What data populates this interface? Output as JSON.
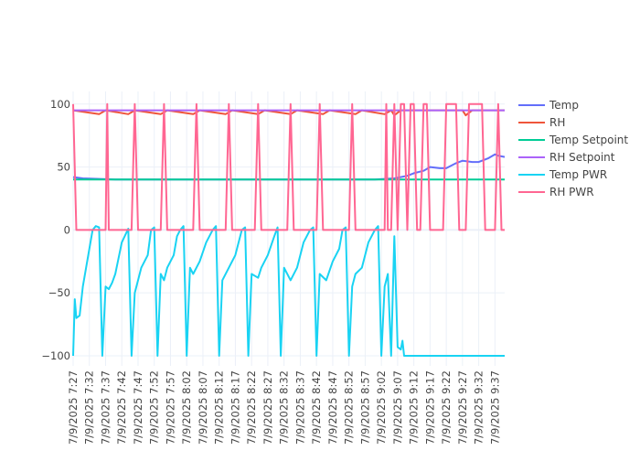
{
  "chart_data": {
    "type": "line",
    "title": "",
    "xlabel": "",
    "ylabel": "",
    "ylim": [
      -108,
      110
    ],
    "grid": true,
    "legend_position": "right",
    "x_ticks": [
      "7/9/2025 7:27",
      "7/9/2025 7:32",
      "7/9/2025 7:37",
      "7/9/2025 7:42",
      "7/9/2025 7:47",
      "7/9/2025 7:52",
      "7/9/2025 7:57",
      "7/9/2025 8:02",
      "7/9/2025 8:07",
      "7/9/2025 8:12",
      "7/9/2025 8:17",
      "7/9/2025 8:22",
      "7/9/2025 8:27",
      "7/9/2025 8:32",
      "7/9/2025 8:37",
      "7/9/2025 8:42",
      "7/9/2025 8:47",
      "7/9/2025 8:52",
      "7/9/2025 8:57",
      "7/9/2025 9:02",
      "7/9/2025 9:07",
      "7/9/2025 9:12",
      "7/9/2025 9:17",
      "7/9/2025 9:22",
      "7/9/2025 9:27",
      "7/9/2025 9:32",
      "7/9/2025 9:37"
    ],
    "x_range": [
      "7/9/2025 7:27",
      "7/9/2025 9:40"
    ],
    "y_ticks": [
      100,
      50,
      0,
      -50,
      -100
    ],
    "series": [
      {
        "name": "Temp",
        "color": "#636efa",
        "points": [
          [
            "7:27",
            42
          ],
          [
            "7:30",
            41
          ],
          [
            "7:40",
            40
          ],
          [
            "8:00",
            40
          ],
          [
            "8:30",
            40
          ],
          [
            "9:00",
            40
          ],
          [
            "9:06",
            41
          ],
          [
            "9:10",
            43
          ],
          [
            "9:12",
            45
          ],
          [
            "9:15",
            47
          ],
          [
            "9:17",
            50
          ],
          [
            "9:20",
            49
          ],
          [
            "9:22",
            49
          ],
          [
            "9:25",
            53
          ],
          [
            "9:27",
            55
          ],
          [
            "9:30",
            54
          ],
          [
            "9:32",
            54
          ],
          [
            "9:35",
            57
          ],
          [
            "9:37",
            60
          ],
          [
            "9:38",
            59
          ],
          [
            "9:40",
            58
          ]
        ]
      },
      {
        "name": "RH",
        "color": "#ef553b",
        "points": [
          [
            "7:27",
            95
          ],
          [
            "7:35",
            92
          ],
          [
            "7:37",
            95
          ],
          [
            "7:44",
            92
          ],
          [
            "7:46",
            95
          ],
          [
            "7:54",
            92
          ],
          [
            "7:56",
            95
          ],
          [
            "8:04",
            92
          ],
          [
            "8:06",
            95
          ],
          [
            "8:14",
            92
          ],
          [
            "8:16",
            95
          ],
          [
            "8:24",
            92
          ],
          [
            "8:26",
            95
          ],
          [
            "8:34",
            92
          ],
          [
            "8:36",
            95
          ],
          [
            "8:44",
            92
          ],
          [
            "8:46",
            95
          ],
          [
            "8:54",
            92
          ],
          [
            "8:56",
            95
          ],
          [
            "9:03",
            92
          ],
          [
            "9:05",
            95
          ],
          [
            "9:06",
            91
          ],
          [
            "9:08",
            95
          ],
          [
            "9:27",
            95
          ],
          [
            "9:28",
            91
          ],
          [
            "9:30",
            95
          ],
          [
            "9:40",
            95
          ]
        ]
      },
      {
        "name": "Temp Setpoint",
        "color": "#00cc96",
        "points": [
          [
            "7:27",
            40
          ],
          [
            "9:40",
            40
          ]
        ]
      },
      {
        "name": "RH Setpoint",
        "color": "#ab63fa",
        "points": [
          [
            "7:27",
            95
          ],
          [
            "9:40",
            95
          ]
        ]
      },
      {
        "name": "Temp PWR",
        "color": "#19d3f3",
        "points": [
          [
            "7:27",
            -100
          ],
          [
            "7:27.5",
            -55
          ],
          [
            "7:28",
            -70
          ],
          [
            "7:29",
            -68
          ],
          [
            "7:30",
            -45
          ],
          [
            "7:33",
            0
          ],
          [
            "7:34",
            3
          ],
          [
            "7:35",
            2
          ],
          [
            "7:36",
            -100
          ],
          [
            "7:37",
            -45
          ],
          [
            "7:38",
            -47
          ],
          [
            "7:39",
            -42
          ],
          [
            "7:40",
            -35
          ],
          [
            "7:42",
            -10
          ],
          [
            "7:44",
            1
          ],
          [
            "7:45",
            -100
          ],
          [
            "7:46",
            -50
          ],
          [
            "7:47",
            -40
          ],
          [
            "7:48",
            -30
          ],
          [
            "7:50",
            -20
          ],
          [
            "7:51",
            0
          ],
          [
            "7:52",
            2
          ],
          [
            "7:53",
            -100
          ],
          [
            "7:54",
            -35
          ],
          [
            "7:55",
            -40
          ],
          [
            "7:56",
            -30
          ],
          [
            "7:58",
            -20
          ],
          [
            "7:59",
            -5
          ],
          [
            "8:00",
            0
          ],
          [
            "8:01",
            3
          ],
          [
            "8:02",
            -100
          ],
          [
            "8:03",
            -30
          ],
          [
            "8:04",
            -35
          ],
          [
            "8:06",
            -25
          ],
          [
            "8:08",
            -10
          ],
          [
            "8:10",
            0
          ],
          [
            "8:11",
            3
          ],
          [
            "8:12",
            -100
          ],
          [
            "8:13",
            -40
          ],
          [
            "8:15",
            -30
          ],
          [
            "8:17",
            -20
          ],
          [
            "8:19",
            0
          ],
          [
            "8:20",
            2
          ],
          [
            "8:21",
            -100
          ],
          [
            "8:22",
            -35
          ],
          [
            "8:24",
            -38
          ],
          [
            "8:25",
            -30
          ],
          [
            "8:27",
            -20
          ],
          [
            "8:29",
            -5
          ],
          [
            "8:30",
            2
          ],
          [
            "8:31",
            -100
          ],
          [
            "8:32",
            -30
          ],
          [
            "8:34",
            -40
          ],
          [
            "8:36",
            -30
          ],
          [
            "8:38",
            -10
          ],
          [
            "8:40",
            0
          ],
          [
            "8:41",
            2
          ],
          [
            "8:42",
            -100
          ],
          [
            "8:43",
            -35
          ],
          [
            "8:45",
            -40
          ],
          [
            "8:47",
            -25
          ],
          [
            "8:49",
            -15
          ],
          [
            "8:50",
            0
          ],
          [
            "8:51",
            2
          ],
          [
            "8:52",
            -100
          ],
          [
            "8:53",
            -45
          ],
          [
            "8:54",
            -35
          ],
          [
            "8:56",
            -30
          ],
          [
            "8:58",
            -10
          ],
          [
            "9:00",
            0
          ],
          [
            "9:01",
            3
          ],
          [
            "9:02",
            -100
          ],
          [
            "9:03",
            -45
          ],
          [
            "9:04",
            -35
          ],
          [
            "9:05",
            -100
          ],
          [
            "9:06",
            -5
          ],
          [
            "9:07",
            -93
          ],
          [
            "9:08",
            -95
          ],
          [
            "9:08.5",
            -88
          ],
          [
            "9:09",
            -100
          ],
          [
            "9:40",
            -100
          ]
        ]
      },
      {
        "name": "RH PWR",
        "color": "#ff6692",
        "points": [
          [
            "7:27",
            100
          ],
          [
            "7:28",
            0
          ],
          [
            "7:37",
            0
          ],
          [
            "7:37.5",
            100
          ],
          [
            "7:38",
            0
          ],
          [
            "7:45",
            0
          ],
          [
            "7:46",
            100
          ],
          [
            "7:47",
            0
          ],
          [
            "7:54",
            0
          ],
          [
            "7:55",
            100
          ],
          [
            "7:56",
            0
          ],
          [
            "8:04",
            0
          ],
          [
            "8:05",
            100
          ],
          [
            "8:06",
            0
          ],
          [
            "8:14",
            0
          ],
          [
            "8:15",
            100
          ],
          [
            "8:16",
            0
          ],
          [
            "8:23",
            0
          ],
          [
            "8:24",
            100
          ],
          [
            "8:25",
            0
          ],
          [
            "8:33",
            0
          ],
          [
            "8:34",
            100
          ],
          [
            "8:35",
            0
          ],
          [
            "8:42",
            0
          ],
          [
            "8:43",
            100
          ],
          [
            "8:44",
            0
          ],
          [
            "8:52",
            0
          ],
          [
            "8:53",
            100
          ],
          [
            "8:54",
            0
          ],
          [
            "9:03",
            0
          ],
          [
            "9:03.5",
            100
          ],
          [
            "9:04",
            0
          ],
          [
            "9:05",
            0
          ],
          [
            "9:06",
            100
          ],
          [
            "9:07",
            0
          ],
          [
            "9:08",
            100
          ],
          [
            "9:09",
            100
          ],
          [
            "9:10",
            0
          ],
          [
            "9:11",
            100
          ],
          [
            "9:12",
            100
          ],
          [
            "9:13",
            0
          ],
          [
            "9:14",
            0
          ],
          [
            "9:15",
            100
          ],
          [
            "9:16",
            100
          ],
          [
            "9:17",
            0
          ],
          [
            "9:21",
            0
          ],
          [
            "9:22",
            100
          ],
          [
            "9:25",
            100
          ],
          [
            "9:26",
            0
          ],
          [
            "9:28",
            0
          ],
          [
            "9:29",
            100
          ],
          [
            "9:33",
            100
          ],
          [
            "9:34",
            0
          ],
          [
            "9:37",
            0
          ],
          [
            "9:38",
            100
          ],
          [
            "9:39",
            0
          ],
          [
            "9:40",
            0
          ]
        ]
      }
    ],
    "legend": [
      {
        "name": "Temp",
        "color": "#636efa"
      },
      {
        "name": "RH",
        "color": "#ef553b"
      },
      {
        "name": "Temp Setpoint",
        "color": "#00cc96"
      },
      {
        "name": "RH Setpoint",
        "color": "#ab63fa"
      },
      {
        "name": "Temp PWR",
        "color": "#19d3f3"
      },
      {
        "name": "RH PWR",
        "color": "#ff6692"
      }
    ]
  }
}
